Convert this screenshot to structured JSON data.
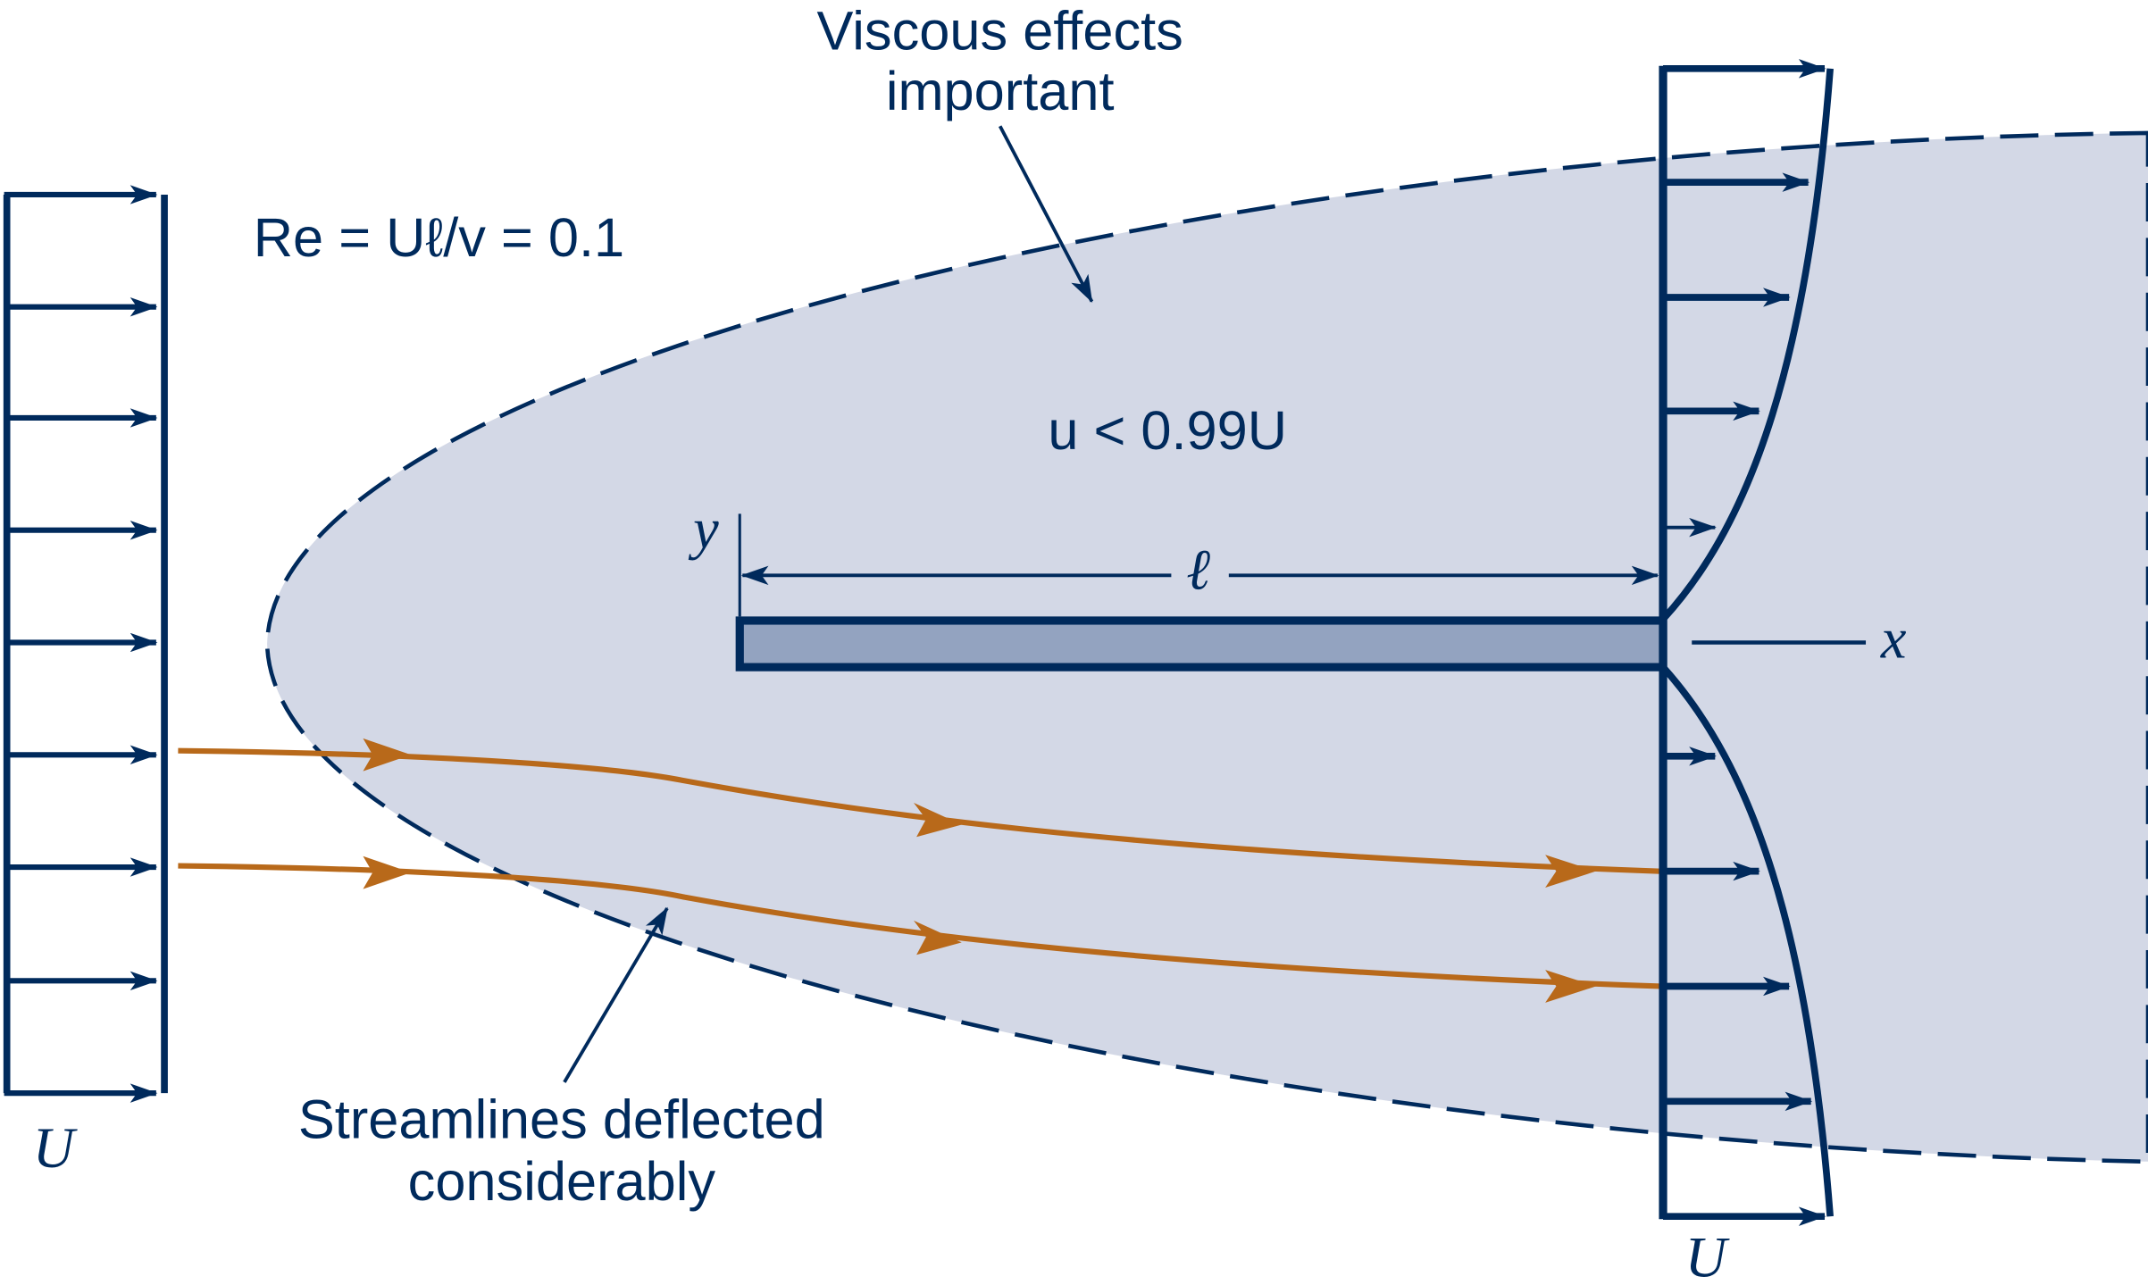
{
  "colors": {
    "navy": "#002a5c",
    "region_fill": "#d3d8e6",
    "plate_fill": "#93a3c0",
    "streamline": "#b8691a"
  },
  "labels": {
    "viscous_line1": "Viscous effects",
    "viscous_line2": "important",
    "reynolds": "Re = Uℓ/v = 0.1",
    "velocity_condition": "u < 0.99U",
    "y_axis": "y",
    "x_axis": "x",
    "length": "ℓ",
    "upstream_velocity": "U",
    "downstream_velocity": "U",
    "streamlines_line1": "Streamlines deflected",
    "streamlines_line2": "considerably"
  }
}
